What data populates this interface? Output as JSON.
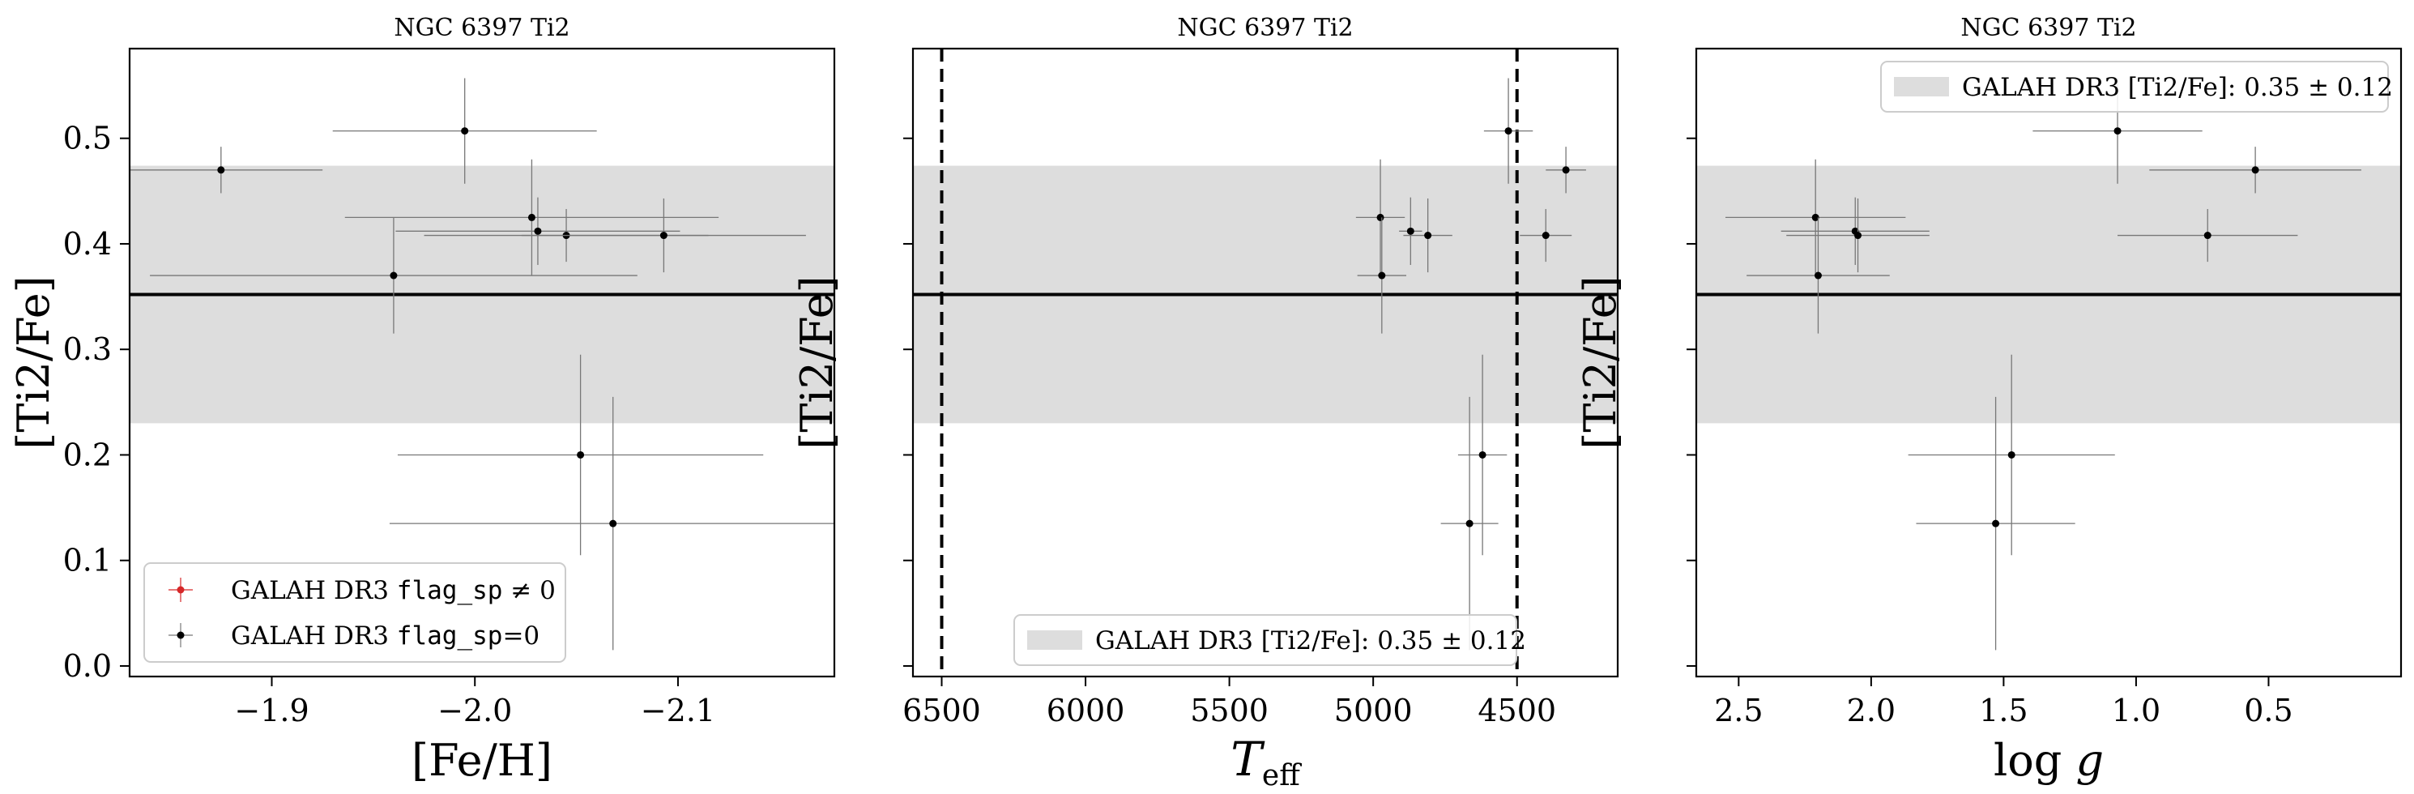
{
  "shared": {
    "band_label": "GALAH DR3 [Ti2/Fe]: 0.35 ± 0.12",
    "band_color": "#dddddd",
    "mean_value": 0.352,
    "band_range": [
      0.23,
      0.474
    ],
    "legend_flag_nonzero_prefix": "GALAH DR3 ",
    "legend_flag_nonzero_code": "flag_sp",
    "legend_flag_nonzero_suffix": " ≠ 0",
    "legend_flag_zero_prefix": "GALAH DR3 ",
    "legend_flag_zero_code": "flag_sp",
    "legend_flag_zero_suffix": "=0",
    "flag_nonzero_color": "#d62728",
    "point_color": "#000000"
  },
  "chart_data": [
    {
      "type": "scatter",
      "title": "NGC 6397 Ti2",
      "xlabel": "[Fe/H]",
      "ylabel": "[Ti2/Fe]",
      "xlim": [
        -1.83,
        -2.177
      ],
      "ylim": [
        -0.01,
        0.585
      ],
      "xticks": [
        -1.9,
        -2.0,
        -2.1
      ],
      "xtick_labels": [
        "−1.9",
        "−2.0",
        "−2.1"
      ],
      "yticks": [
        0.0,
        0.1,
        0.2,
        0.3,
        0.4,
        0.5
      ],
      "ytick_labels": [
        "0.0",
        "0.1",
        "0.2",
        "0.3",
        "0.4",
        "0.5"
      ],
      "show_yticklabels": true,
      "legend": "lower-left",
      "points": [
        {
          "x": -1.875,
          "y": 0.47,
          "xerr": 0.05,
          "yerr": 0.022
        },
        {
          "x": -1.995,
          "y": 0.507,
          "xerr": 0.065,
          "yerr": 0.05
        },
        {
          "x": -1.96,
          "y": 0.37,
          "xerr": 0.12,
          "yerr": 0.055
        },
        {
          "x": -2.028,
          "y": 0.425,
          "xerr": 0.092,
          "yerr": 0.055
        },
        {
          "x": -2.031,
          "y": 0.412,
          "xerr": 0.07,
          "yerr": 0.032
        },
        {
          "x": -2.045,
          "y": 0.408,
          "xerr": 0.07,
          "yerr": 0.025
        },
        {
          "x": -2.093,
          "y": 0.408,
          "xerr": 0.07,
          "yerr": 0.035
        },
        {
          "x": -2.052,
          "y": 0.2,
          "xerr": 0.09,
          "yerr": 0.095
        },
        {
          "x": -2.068,
          "y": 0.135,
          "xerr": 0.11,
          "yerr": 0.12
        }
      ]
    },
    {
      "type": "scatter",
      "title": "NGC 6397 Ti2",
      "xlabel": "T_eff",
      "ylabel": "[Ti2/Fe]",
      "xlim": [
        6600,
        4150
      ],
      "ylim": [
        -0.01,
        0.585
      ],
      "xticks": [
        6500,
        6000,
        5500,
        5000,
        4500
      ],
      "xtick_labels": [
        "6500",
        "6000",
        "5500",
        "5000",
        "4500"
      ],
      "yticks": [
        0.0,
        0.1,
        0.2,
        0.3,
        0.4,
        0.5
      ],
      "ytick_labels": [
        "",
        "",
        "",
        "",
        "",
        ""
      ],
      "show_yticklabels": false,
      "vlines": [
        6500,
        4500
      ],
      "legend": "bottom-center",
      "points": [
        {
          "x": 4530,
          "y": 0.507,
          "xerr": 85,
          "yerr": 0.05
        },
        {
          "x": 4330,
          "y": 0.47,
          "xerr": 70,
          "yerr": 0.022
        },
        {
          "x": 4975,
          "y": 0.425,
          "xerr": 85,
          "yerr": 0.055
        },
        {
          "x": 4870,
          "y": 0.412,
          "xerr": 40,
          "yerr": 0.032
        },
        {
          "x": 4810,
          "y": 0.408,
          "xerr": 85,
          "yerr": 0.035
        },
        {
          "x": 4400,
          "y": 0.408,
          "xerr": 90,
          "yerr": 0.025
        },
        {
          "x": 4970,
          "y": 0.37,
          "xerr": 85,
          "yerr": 0.055
        },
        {
          "x": 4620,
          "y": 0.2,
          "xerr": 85,
          "yerr": 0.095
        },
        {
          "x": 4665,
          "y": 0.135,
          "xerr": 100,
          "yerr": 0.12
        }
      ]
    },
    {
      "type": "scatter",
      "title": "NGC 6397 Ti2",
      "xlabel": "log g",
      "ylabel": "[Ti2/Fe]",
      "xlim": [
        2.66,
        0.0
      ],
      "ylim": [
        -0.01,
        0.585
      ],
      "xticks": [
        2.5,
        2.0,
        1.5,
        1.0,
        0.5
      ],
      "xtick_labels": [
        "2.5",
        "2.0",
        "1.5",
        "1.0",
        "0.5"
      ],
      "yticks": [
        0.0,
        0.1,
        0.2,
        0.3,
        0.4,
        0.5
      ],
      "ytick_labels": [
        "",
        "",
        "",
        "",
        "",
        ""
      ],
      "show_yticklabels": false,
      "legend": "top-right",
      "points": [
        {
          "x": 1.07,
          "y": 0.507,
          "xerr": 0.32,
          "yerr": 0.05
        },
        {
          "x": 0.55,
          "y": 0.47,
          "xerr": 0.4,
          "yerr": 0.022
        },
        {
          "x": 2.21,
          "y": 0.425,
          "xerr": 0.34,
          "yerr": 0.055
        },
        {
          "x": 2.06,
          "y": 0.412,
          "xerr": 0.28,
          "yerr": 0.032
        },
        {
          "x": 2.05,
          "y": 0.408,
          "xerr": 0.27,
          "yerr": 0.035
        },
        {
          "x": 0.73,
          "y": 0.408,
          "xerr": 0.34,
          "yerr": 0.025
        },
        {
          "x": 2.2,
          "y": 0.37,
          "xerr": 0.27,
          "yerr": 0.055
        },
        {
          "x": 1.47,
          "y": 0.2,
          "xerr": 0.39,
          "yerr": 0.095
        },
        {
          "x": 1.53,
          "y": 0.135,
          "xerr": 0.3,
          "yerr": 0.12
        }
      ]
    }
  ]
}
